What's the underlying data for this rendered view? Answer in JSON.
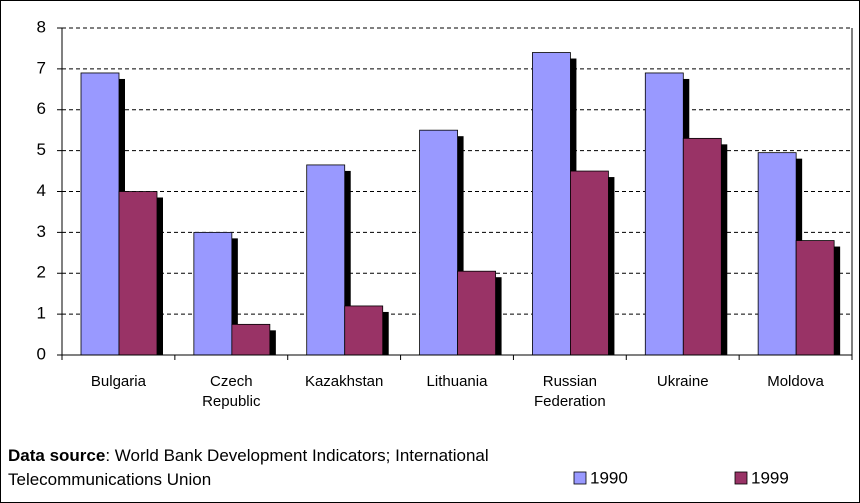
{
  "chart_data": {
    "type": "bar",
    "categories": [
      "Bulgaria",
      "Czech Republic",
      "Kazakhstan",
      "Lithuania",
      "Russian Federation",
      "Ukraine",
      "Moldova"
    ],
    "series": [
      {
        "name": "1990",
        "color": "#9999ff",
        "values": [
          6.9,
          3.0,
          4.65,
          5.5,
          7.4,
          6.9,
          4.95
        ]
      },
      {
        "name": "1999",
        "color": "#993366",
        "values": [
          4.0,
          0.75,
          1.2,
          2.05,
          4.5,
          5.3,
          2.8
        ]
      }
    ],
    "ylim": [
      0,
      8
    ],
    "yticks": [
      0,
      1,
      2,
      3,
      4,
      5,
      6,
      7,
      8
    ],
    "grid": true,
    "source_label": "Data source",
    "source_text": ": World Bank Development Indicators; International Telecommunications Union"
  }
}
